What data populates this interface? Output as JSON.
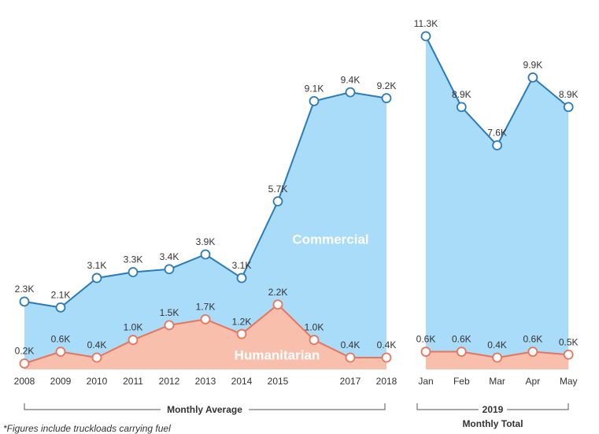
{
  "footnote": "*Figures include truckloads carrying fuel",
  "chart_data": [
    {
      "type": "line",
      "xlabel": "Monthly Average",
      "categories": [
        "2008",
        "2009",
        "2010",
        "2011",
        "2012",
        "2013",
        "2014",
        "2015",
        null,
        "2017",
        "2018"
      ],
      "series": [
        {
          "name": "Commercial",
          "color": "#2b7bb9",
          "fill": "#a9dcf8",
          "values": [
            2300,
            2100,
            3100,
            3300,
            3400,
            3900,
            3100,
            5700,
            9100,
            9400,
            9200
          ],
          "value_labels": [
            "2.3K",
            "2.1K",
            "3.1K",
            "3.3K",
            "3.4K",
            "3.9K",
            "3.1K",
            "5.7K",
            "9.1K",
            "9.4K",
            "9.2K"
          ]
        },
        {
          "name": "Humanitarian",
          "color": "#e9745b",
          "fill": "#f8bfad",
          "values": [
            200,
            600,
            400,
            1000,
            1500,
            1700,
            1200,
            2200,
            1000,
            400,
            400
          ],
          "value_labels": [
            "0.2K",
            "0.6K",
            "0.4K",
            "1.0K",
            "1.5K",
            "1.7K",
            "1.2K",
            "2.2K",
            "1.0K",
            "0.4K",
            "0.4K"
          ]
        }
      ]
    },
    {
      "type": "line",
      "bracket_title": "2019",
      "xlabel": "Monthly Total",
      "categories": [
        "Jan",
        "Feb",
        "Mar",
        "Apr",
        "May"
      ],
      "series": [
        {
          "name": "Commercial",
          "color": "#2b7bb9",
          "fill": "#a9dcf8",
          "values": [
            11300,
            8900,
            7600,
            9900,
            8900
          ],
          "value_labels": [
            "11.3K",
            "8.9K",
            "7.6K",
            "9.9K",
            "8.9K"
          ]
        },
        {
          "name": "Humanitarian",
          "color": "#e9745b",
          "fill": "#f8bfad",
          "values": [
            600,
            600,
            400,
            600,
            500
          ],
          "value_labels": [
            "0.6K",
            "0.6K",
            "0.4K",
            "0.6K",
            "0.5K"
          ]
        }
      ]
    }
  ]
}
